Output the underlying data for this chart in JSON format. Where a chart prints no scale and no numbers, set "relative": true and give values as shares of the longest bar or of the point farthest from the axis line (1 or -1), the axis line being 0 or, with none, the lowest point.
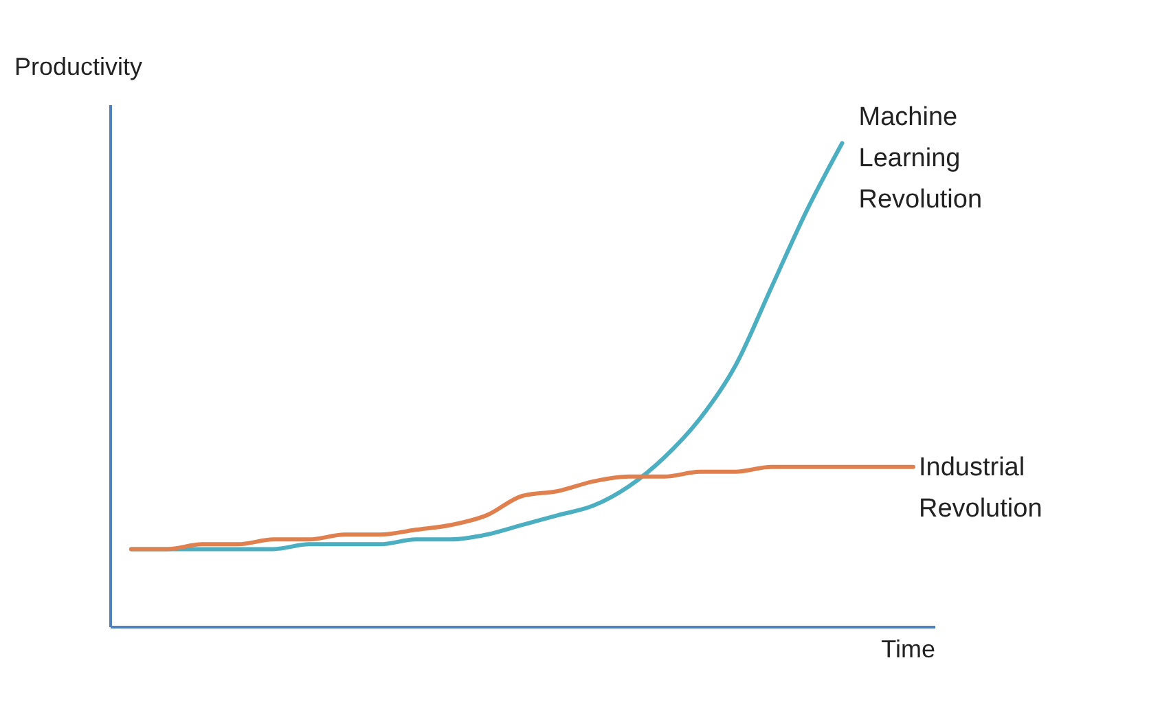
{
  "chart_data": {
    "type": "line",
    "relative": true,
    "xlabel": "Time",
    "ylabel": "Productivity",
    "grid": false,
    "tick_labels": false,
    "marker": "none",
    "line_style": "solid",
    "categories": [
      null,
      null,
      null,
      null,
      null,
      null,
      null,
      null,
      null,
      null,
      null,
      null,
      null,
      null,
      null,
      null,
      null,
      null,
      null,
      null,
      null,
      null,
      null
    ],
    "series": [
      {
        "name": "Machine Learning Revolution",
        "color": "#4bafc1",
        "values": [
          0.16,
          0.16,
          0.16,
          0.16,
          0.16,
          0.17,
          0.17,
          0.17,
          0.18,
          0.18,
          0.19,
          0.21,
          0.23,
          0.25,
          0.29,
          0.35,
          0.43,
          0.54,
          0.7,
          0.86,
          1.0,
          null,
          null
        ]
      },
      {
        "name": "Industrial Revolution",
        "color": "#e0804e",
        "values": [
          0.16,
          0.16,
          0.17,
          0.17,
          0.18,
          0.18,
          0.19,
          0.19,
          0.2,
          0.21,
          0.23,
          0.27,
          0.28,
          0.3,
          0.31,
          0.31,
          0.32,
          0.32,
          0.33,
          0.33,
          0.33,
          0.33,
          0.33
        ]
      }
    ]
  }
}
